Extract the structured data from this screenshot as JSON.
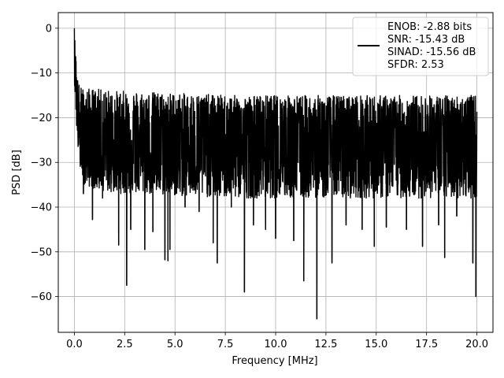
{
  "chart_data": {
    "type": "line",
    "xlabel": "Frequency [MHz]",
    "ylabel": "PSD [dB]",
    "xlim": [
      -0.8,
      20.8
    ],
    "ylim": [
      -68,
      3.5
    ],
    "xticks": [
      0.0,
      2.5,
      5.0,
      7.5,
      10.0,
      12.5,
      15.0,
      17.5,
      20.0
    ],
    "xtick_labels": [
      "0.0",
      "2.5",
      "5.0",
      "7.5",
      "10.0",
      "12.5",
      "15.0",
      "17.5",
      "20.0"
    ],
    "yticks": [
      0,
      -10,
      -20,
      -30,
      -40,
      -50,
      -60
    ],
    "ytick_labels": [
      "0",
      "−10",
      "−20",
      "−30",
      "−40",
      "−50",
      "−60"
    ],
    "grid": true,
    "legend_position": "top-right",
    "legend": [
      "ENOB: -2.88 bits",
      "SNR: -15.43 dB",
      "SINAD: -15.56 dB",
      "SFDR: 2.53"
    ],
    "series_color": "#000000",
    "series": [
      {
        "name": "ENOB: -2.88 bits\nSNR: -15.43 dB\nSINAD: -15.56 dB\nSFDR: 2.53",
        "x": [
          0.0,
          0.02,
          0.04,
          0.06,
          0.08,
          0.1,
          0.12,
          0.14,
          0.17,
          0.2,
          0.24,
          0.28,
          0.33,
          0.4,
          0.5,
          0.6,
          0.7,
          0.8,
          0.9,
          1.0,
          1.5,
          2.0,
          2.5,
          2.6,
          3.0,
          3.5,
          4.0,
          4.5,
          4.6,
          4.75,
          5.0,
          6.0,
          6.9,
          7.0,
          8.0,
          8.5,
          9.0,
          10.0,
          11.0,
          11.45,
          12.0,
          12.1,
          12.8,
          13.0,
          14.0,
          14.8,
          15.0,
          16.0,
          17.0,
          17.5,
          18.0,
          19.0,
          19.5,
          19.9,
          19.98,
          20.0
        ],
        "y": [
          0.0,
          -11.5,
          -3.0,
          -10.0,
          -6.0,
          -13.5,
          -15.0,
          -19.0,
          -21.0,
          -23.5,
          -24.0,
          -24.5,
          -25.0,
          -25.0,
          -25.5,
          -25.5,
          -26.0,
          -26.0,
          -26.0,
          -26.0,
          -26.0,
          -26.5,
          -26.5,
          -26.5,
          -26.5,
          -26.5,
          -26.5,
          -26.5,
          -26.5,
          -26.5,
          -26.5,
          -26.5,
          -26.5,
          -26.5,
          -26.5,
          -26.5,
          -26.5,
          -26.5,
          -26.5,
          -26.5,
          -26.5,
          -26.5,
          -26.5,
          -26.5,
          -26.5,
          -26.5,
          -26.5,
          -26.5,
          -26.5,
          -26.5,
          -26.5,
          -26.5,
          -26.5,
          -26.5,
          -26.5,
          -26.5
        ]
      }
    ],
    "noise_band": {
      "x": [
        0.0,
        0.1,
        0.2,
        0.3,
        0.5,
        1.0,
        2.0,
        3.0,
        5.0,
        8.0,
        12.0,
        16.0,
        20.0
      ],
      "upper": [
        0.0,
        -9.0,
        -12.0,
        -13.0,
        -13.5,
        -13.5,
        -14.0,
        -14.0,
        -14.5,
        -15.0,
        -15.0,
        -15.0,
        -15.0
      ],
      "lower": [
        -12.0,
        -22.0,
        -28.0,
        -32.0,
        -35.0,
        -36.0,
        -37.0,
        -37.0,
        -37.5,
        -38.0,
        -38.0,
        -38.0,
        -38.0
      ]
    },
    "dips": [
      {
        "x": 0.45,
        "y": -37.0
      },
      {
        "x": 0.9,
        "y": -42.8
      },
      {
        "x": 1.4,
        "y": -38.0
      },
      {
        "x": 2.2,
        "y": -48.5
      },
      {
        "x": 2.6,
        "y": -57.5
      },
      {
        "x": 2.8,
        "y": -45.0
      },
      {
        "x": 3.5,
        "y": -49.5
      },
      {
        "x": 3.9,
        "y": -45.5
      },
      {
        "x": 4.5,
        "y": -51.8
      },
      {
        "x": 4.65,
        "y": -52.0
      },
      {
        "x": 4.75,
        "y": -49.5
      },
      {
        "x": 5.5,
        "y": -40.0
      },
      {
        "x": 6.2,
        "y": -41.0
      },
      {
        "x": 6.9,
        "y": -48.0
      },
      {
        "x": 7.1,
        "y": -52.5
      },
      {
        "x": 7.8,
        "y": -40.0
      },
      {
        "x": 8.45,
        "y": -59.0
      },
      {
        "x": 8.9,
        "y": -44.0
      },
      {
        "x": 9.5,
        "y": -45.0
      },
      {
        "x": 10.0,
        "y": -47.0
      },
      {
        "x": 10.9,
        "y": -47.5
      },
      {
        "x": 11.4,
        "y": -56.5
      },
      {
        "x": 12.05,
        "y": -65.0
      },
      {
        "x": 12.8,
        "y": -52.5
      },
      {
        "x": 13.5,
        "y": -44.0
      },
      {
        "x": 14.3,
        "y": -45.0
      },
      {
        "x": 14.9,
        "y": -48.8
      },
      {
        "x": 15.5,
        "y": -44.5
      },
      {
        "x": 16.5,
        "y": -45.0
      },
      {
        "x": 17.3,
        "y": -48.8
      },
      {
        "x": 18.1,
        "y": -44.0
      },
      {
        "x": 18.4,
        "y": -51.3
      },
      {
        "x": 19.0,
        "y": -42.0
      },
      {
        "x": 19.8,
        "y": -52.5
      },
      {
        "x": 19.95,
        "y": -60.0
      }
    ]
  }
}
